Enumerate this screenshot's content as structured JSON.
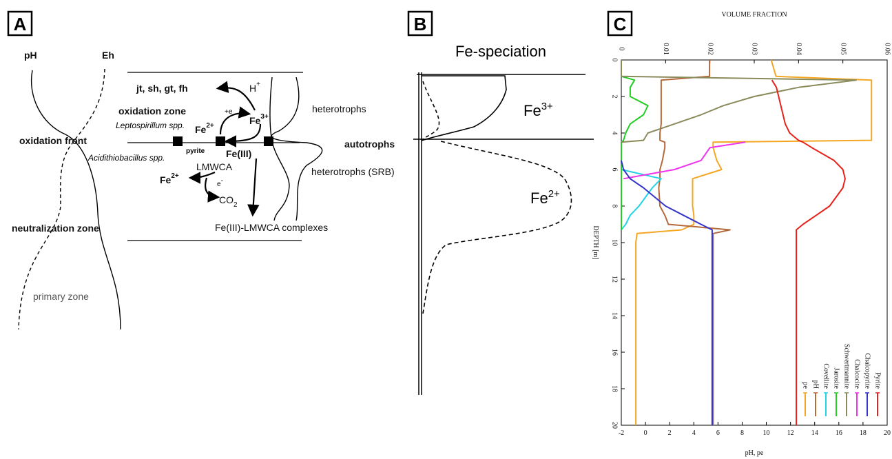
{
  "panel_a": {
    "label": "A",
    "ph": "pH",
    "eh": "Eh",
    "minerals": "jt, sh, gt, fh",
    "h_plus": {
      "base": "H",
      "sup": "+"
    },
    "oxidation_zone": "oxidation zone",
    "electron_gain": "+e",
    "fe3": {
      "base": "Fe",
      "sup": "3+"
    },
    "leptospirillum": "Leptospirillum spp.",
    "fe2_top": {
      "base": "Fe",
      "sup": "2+"
    },
    "oxidation_front": "oxidation front",
    "pyrite": "pyrite",
    "fe_iii": "Fe(III)",
    "acidithiobacillus": "Acidithiobacillus spp.",
    "lmwca": "LMWCA",
    "fe2_bottom": {
      "base": "Fe",
      "sup": "2+"
    },
    "electron": {
      "base": "e",
      "sup": "-"
    },
    "co2": {
      "base": "CO",
      "sub": "2"
    },
    "heterotrophs": "heterotrophs",
    "autotrophs": "autotrophs",
    "heterotrophs_srb": "heterotrophs (SRB)",
    "neutralization_zone": "neutralization zone",
    "complexes": "Fe(III)-LMWCA complexes",
    "primary_zone": "primary zone"
  },
  "panel_b": {
    "label": "B",
    "title": "Fe-speciation",
    "fe3": {
      "base": "Fe",
      "sup": "3+"
    },
    "fe2": {
      "base": "Fe",
      "sup": "2+"
    }
  },
  "chart_data": {
    "type": "line",
    "label": "C",
    "orientation": "horizontal",
    "title": "VOLUME FRACTION",
    "xlabel": "DEPTH [m]",
    "y2label": "pH, pe",
    "x": [
      0,
      0.9,
      1.1,
      1.5,
      2,
      2.5,
      3,
      3.5,
      4,
      4.4,
      4.5,
      4.8,
      5.5,
      6,
      6.5,
      7,
      8,
      8.5,
      9,
      9.3,
      9.5,
      10,
      12,
      14,
      16,
      18,
      20
    ],
    "xlim": [
      0,
      20
    ],
    "xticks": [
      0,
      2,
      4,
      6,
      8,
      10,
      12,
      14,
      16,
      18,
      20
    ],
    "ylim": [
      0,
      0.06
    ],
    "yticks": [
      0,
      0.01,
      0.02,
      0.03,
      0.04,
      0.05,
      0.06
    ],
    "y2lim": [
      -2,
      20
    ],
    "y2ticks": [
      -2,
      0,
      2,
      4,
      6,
      8,
      10,
      12,
      14,
      16,
      18,
      20
    ],
    "legend": "bottom right",
    "grid": false,
    "series": [
      {
        "name": "pe",
        "color": "#f5a623",
        "axis": "y2",
        "values": [
          10.4,
          10.8,
          18.7,
          18.7,
          18.7,
          18.7,
          18.7,
          18.7,
          18.7,
          18.7,
          5.6,
          5.6,
          5.9,
          6.3,
          3.9,
          3.9,
          3.9,
          4.0,
          4.0,
          3.0,
          -0.7,
          -0.8,
          -0.8,
          -0.8,
          -0.8,
          -0.8,
          -0.8
        ]
      },
      {
        "name": "pH",
        "color": "#b5683a",
        "axis": "y2",
        "values": [
          5.3,
          5.3,
          1.3,
          1.3,
          1.3,
          1.3,
          1.3,
          1.3,
          1.2,
          1.2,
          1.6,
          1.6,
          1.4,
          1.2,
          1.2,
          1.1,
          1.2,
          1.6,
          1.9,
          7.0,
          5.6,
          5.6,
          5.6,
          5.6,
          5.6,
          5.6,
          5.6
        ]
      },
      {
        "name": "Covellite",
        "color": "#22d3e6",
        "values": [
          null,
          null,
          null,
          null,
          null,
          null,
          null,
          null,
          null,
          null,
          null,
          null,
          null,
          0,
          0.009,
          0.007,
          0.004,
          0.002,
          0.001,
          0,
          null,
          null,
          null,
          null,
          null,
          null,
          null
        ]
      },
      {
        "name": "Jarosite",
        "color": "#22cc22",
        "values": [
          0,
          0,
          0.003,
          0.002,
          0.002,
          0.006,
          0.005,
          0.002,
          0.001,
          0.0005,
          0,
          0,
          0,
          0,
          0,
          0,
          0,
          0,
          0,
          0,
          null,
          null,
          null,
          null,
          null,
          null,
          null
        ]
      },
      {
        "name": "Schwertmannite",
        "color": "#8a8a5c",
        "values": [
          0,
          0,
          0.053,
          0.04,
          0.03,
          0.023,
          0.018,
          0.012,
          0.006,
          0.005,
          0,
          null,
          null,
          null,
          null,
          null,
          null,
          null,
          null,
          null,
          null,
          null,
          null,
          null,
          null,
          null,
          null
        ]
      },
      {
        "name": "Chalcocite",
        "color": "#ee33ee",
        "values": [
          null,
          null,
          null,
          null,
          null,
          null,
          null,
          null,
          null,
          null,
          0.028,
          0.02,
          0.018,
          0.012,
          0.0005,
          null,
          null,
          null,
          null,
          null,
          null,
          null,
          null,
          null,
          null,
          null,
          null
        ]
      },
      {
        "name": "Chalcopyrite",
        "color": "#3333cc",
        "values": [
          null,
          null,
          null,
          null,
          null,
          null,
          null,
          null,
          null,
          null,
          null,
          null,
          0,
          0.0005,
          0.002,
          0.005,
          0.01,
          0.014,
          0.018,
          0.0205,
          0.0205,
          0.0205,
          0.0205,
          0.0205,
          0.0205,
          0.0205,
          0.0205
        ]
      },
      {
        "name": "Pyrite",
        "color": "#e8201a",
        "values": [
          null,
          null,
          0.034,
          0.035,
          0.0355,
          0.036,
          0.0365,
          0.037,
          0.038,
          0.04,
          0.041,
          0.043,
          0.048,
          0.05,
          0.0505,
          0.05,
          0.047,
          0.044,
          0.041,
          0.0395,
          0.0395,
          0.0395,
          0.0395,
          0.0395,
          0.0395,
          0.0395,
          0.0395
        ]
      }
    ]
  }
}
